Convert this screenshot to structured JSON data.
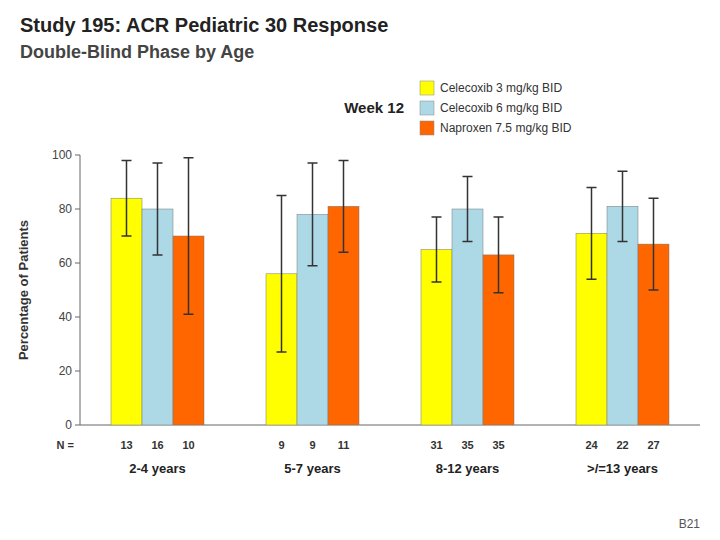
{
  "chart_data": {
    "type": "bar",
    "title": "Study 195:  ACR Pediatric 30 Response",
    "subtitle": "Double-Blind Phase by Age",
    "week_label": "Week 12",
    "y_label": "Percentage of Patients",
    "n_prefix": "N =",
    "footnote": "B21",
    "categories": [
      "2-4 years",
      "5-7 years",
      "8-12 years",
      ">/=13 years"
    ],
    "series": [
      {
        "name": "Celecoxib 3 mg/kg BID",
        "color": "#FFFF00",
        "values": [
          84,
          56,
          65,
          71
        ],
        "errors": [
          14,
          29,
          12,
          17
        ],
        "n": [
          13,
          9,
          31,
          24
        ]
      },
      {
        "name": "Celecoxib 6 mg/kg BID",
        "color": "#ADD8E6",
        "values": [
          80,
          78,
          80,
          81
        ],
        "errors": [
          17,
          19,
          12,
          13
        ],
        "n": [
          16,
          9,
          35,
          22
        ]
      },
      {
        "name": "Naproxen 7.5 mg/kg BID",
        "color": "#FF6600",
        "values": [
          70,
          81,
          63,
          67
        ],
        "errors": [
          29,
          17,
          14,
          17
        ],
        "n": [
          10,
          11,
          35,
          27
        ]
      }
    ],
    "ylim": [
      0,
      100
    ],
    "yticks": [
      0,
      20,
      40,
      60,
      80,
      100
    ],
    "grid": false,
    "legend": "top-right"
  }
}
